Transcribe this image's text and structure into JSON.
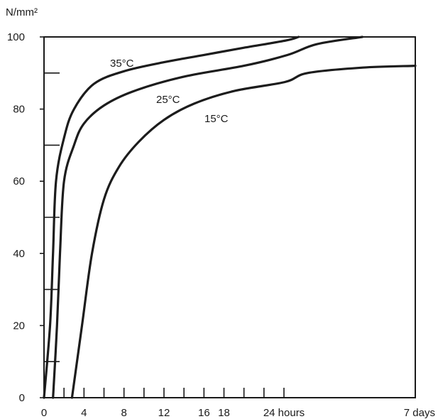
{
  "chart_data": {
    "type": "line",
    "ylabel": "N/mm²",
    "ylim": [
      0,
      100
    ],
    "y_tick_labels": [
      "0",
      "20",
      "40",
      "60",
      "80",
      "100"
    ],
    "y_tick_values": [
      0,
      20,
      40,
      60,
      80,
      100
    ],
    "x_tick_labels": [
      {
        "x": 0,
        "label": "0"
      },
      {
        "x": 4,
        "label": "4"
      },
      {
        "x": 8,
        "label": "8"
      },
      {
        "x": 12,
        "label": "12"
      },
      {
        "x": 16,
        "label": "16"
      },
      {
        "x": 18,
        "label": "18"
      },
      {
        "x": 24,
        "label": "24 hours"
      },
      {
        "x": 168,
        "label": "7 days"
      }
    ],
    "grid": false,
    "series": [
      {
        "name": "35°C",
        "points": [
          [
            0,
            0
          ],
          [
            0.6,
            20
          ],
          [
            0.9,
            40
          ],
          [
            1.2,
            60
          ],
          [
            2,
            72
          ],
          [
            3,
            80
          ],
          [
            5,
            87
          ],
          [
            8,
            90.5
          ],
          [
            12,
            93
          ],
          [
            16,
            95
          ],
          [
            20,
            97
          ],
          [
            26,
            99
          ],
          [
            40,
            100
          ]
        ]
      },
      {
        "name": "25°C",
        "points": [
          [
            0.9,
            0
          ],
          [
            1.3,
            20
          ],
          [
            1.6,
            40
          ],
          [
            2,
            60
          ],
          [
            3,
            70
          ],
          [
            4,
            76
          ],
          [
            6,
            81
          ],
          [
            9,
            85
          ],
          [
            14,
            89
          ],
          [
            20,
            92
          ],
          [
            28,
            95
          ],
          [
            60,
            98
          ],
          [
            110,
            100
          ]
        ]
      },
      {
        "name": "15°C",
        "points": [
          [
            2.8,
            0
          ],
          [
            3.8,
            20
          ],
          [
            4.8,
            40
          ],
          [
            6,
            55
          ],
          [
            7.5,
            64
          ],
          [
            9.5,
            71
          ],
          [
            12,
            77
          ],
          [
            15,
            81.5
          ],
          [
            19,
            85
          ],
          [
            25,
            87.5
          ],
          [
            50,
            90
          ],
          [
            110,
            91.5
          ],
          [
            168,
            92
          ]
        ]
      }
    ]
  }
}
